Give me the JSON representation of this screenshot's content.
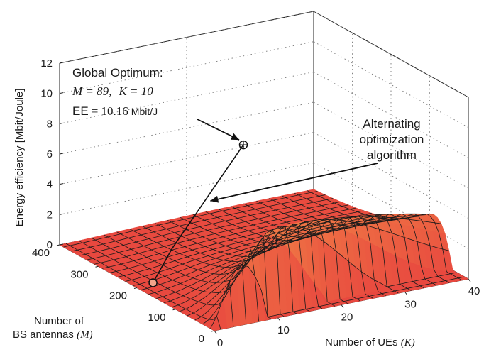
{
  "chart_data": {
    "type": "surface",
    "xlabel_prefix": "Number of UEs ",
    "xlabel_math": "(K)",
    "ylabel_line1": "Number of",
    "ylabel_line2_prefix": "BS antennas ",
    "ylabel_line2_math": "(M)",
    "zlabel": "Energy efficiency [Mbit/Joule]",
    "x_ticks": [
      "0",
      "10",
      "20",
      "30",
      "40"
    ],
    "y_ticks": [
      "0",
      "100",
      "200",
      "300",
      "400"
    ],
    "z_ticks": [
      "0",
      "2",
      "4",
      "6",
      "8",
      "10",
      "12"
    ],
    "xlim": [
      0,
      40
    ],
    "ylim": [
      0,
      400
    ],
    "zlim": [
      0,
      12
    ],
    "grid": true,
    "global_optimum": {
      "title": "Global Optimum:",
      "M_text": "M = 89,",
      "K_text": "K = 10",
      "EE_prefix": "EE",
      "EE_text": "= 10.16",
      "EE_unit": "Mbit/J",
      "M": 89,
      "K": 10,
      "EE": 10.16
    },
    "algorithm_label": [
      "Alternating",
      "optimization",
      "algorithm"
    ],
    "algorithm_path": [
      {
        "K": 1,
        "M": 175,
        "EE": 0.6
      },
      {
        "K": 4,
        "M": 175,
        "EE": 2.6
      },
      {
        "K": 7,
        "M": 120,
        "EE": 7.0
      },
      {
        "K": 10,
        "M": 89,
        "EE": 10.16
      }
    ],
    "colors": {
      "surface_low": "#e8483f",
      "surface_mid": "#f07a45",
      "surface_peak": "#f6f03c",
      "mesh_line": "#1a1a1a"
    }
  }
}
